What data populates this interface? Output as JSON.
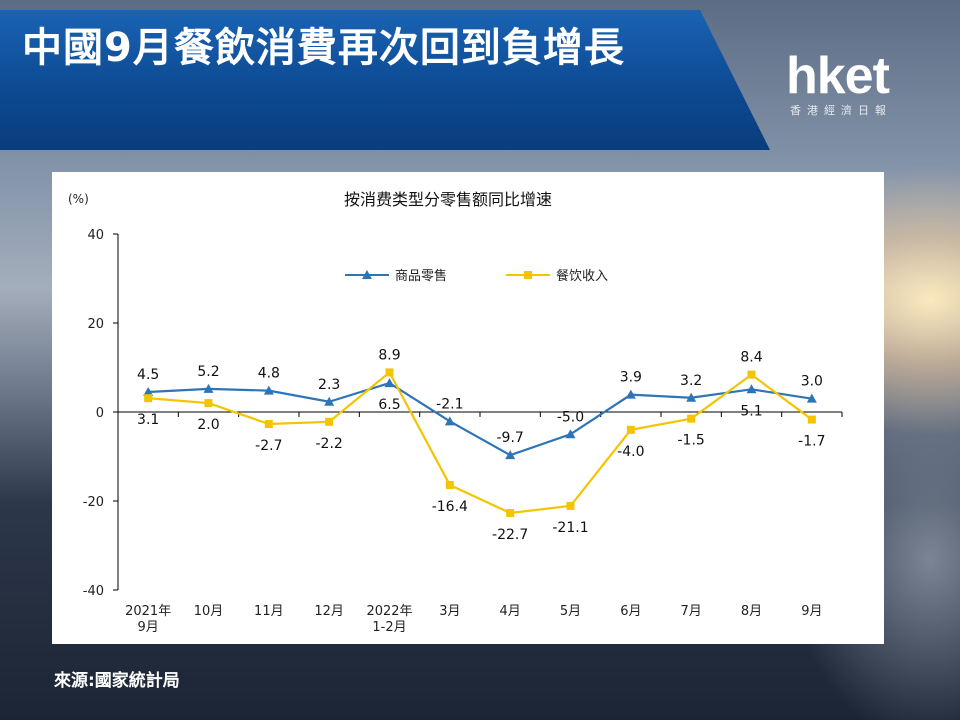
{
  "header": {
    "title": "中國9月餐飲消費再次回到負增長"
  },
  "logo": {
    "word": "hket",
    "subtitle": "香港經濟日報"
  },
  "source": "來源:國家統計局",
  "chart_data": {
    "type": "line",
    "title": "按消费类型分零售额同比增速",
    "ylabel": "(%)",
    "ylim": [
      -40,
      40
    ],
    "yticks": [
      40,
      20,
      0,
      -20,
      -40
    ],
    "categories": [
      [
        "2021年",
        "9月"
      ],
      [
        "10月"
      ],
      [
        "11月"
      ],
      [
        "12月"
      ],
      [
        "2022年",
        "1-2月"
      ],
      [
        "3月"
      ],
      [
        "4月"
      ],
      [
        "5月"
      ],
      [
        "6月"
      ],
      [
        "7月"
      ],
      [
        "8月"
      ],
      [
        "9月"
      ]
    ],
    "series": [
      {
        "name": "商品零售",
        "color": "#2e75b6",
        "marker": "triangle",
        "values": [
          4.5,
          5.2,
          4.8,
          2.3,
          6.5,
          -2.1,
          -9.7,
          -5.0,
          3.9,
          3.2,
          5.1,
          3.0
        ],
        "labels": [
          "4.5",
          "5.2",
          "4.8",
          "2.3",
          "6.5",
          "-2.1",
          "-9.7",
          "-5.0",
          "3.9",
          "3.2",
          "5.1",
          "3.0"
        ]
      },
      {
        "name": "餐饮收入",
        "color": "#f5c400",
        "marker": "square",
        "values": [
          3.1,
          2.0,
          -2.7,
          -2.2,
          8.9,
          -16.4,
          -22.7,
          -21.1,
          -4.0,
          -1.5,
          8.4,
          -1.7
        ],
        "labels": [
          "3.1",
          "2.0",
          "-2.7",
          "-2.2",
          "8.9",
          "-16.4",
          "-22.7",
          "-21.1",
          "-4.0",
          "-1.5",
          "8.4",
          "-1.7"
        ]
      }
    ],
    "legend": "top-center",
    "grid": false
  }
}
